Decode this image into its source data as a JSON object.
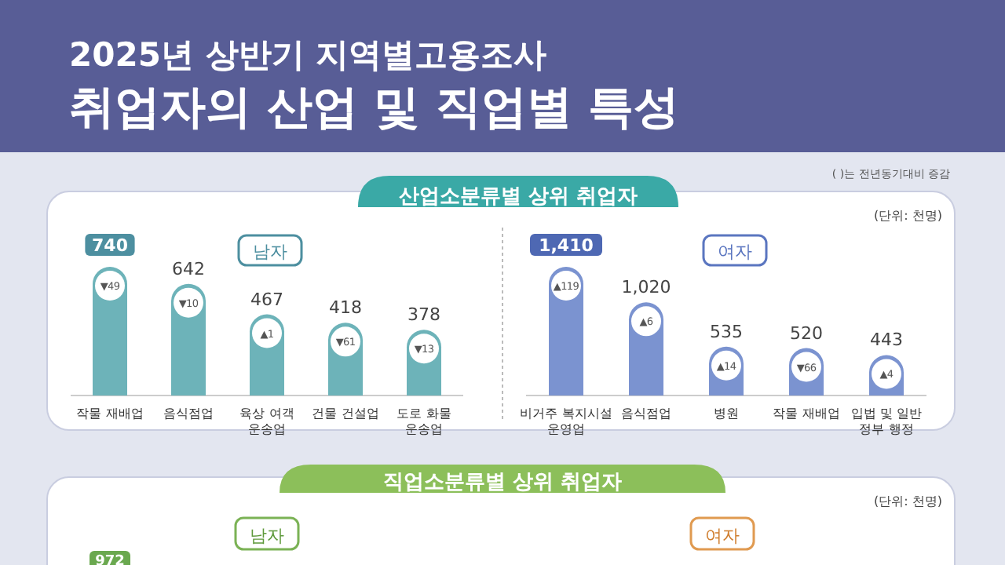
{
  "chart_data": [
    {
      "type": "other",
      "title": "2025년 상반기 지역별고용조사",
      "subtitle": "취업자의 산업 및 직업별 특성"
    },
    {
      "type": "other",
      "title": "산업소분류별 상위 취업자",
      "annotations": [
        "(  )는 전년동기대비 증감",
        "(단위: 천명)"
      ]
    },
    {
      "type": "bar",
      "title": "남자",
      "categories": [
        "작물 재배업",
        "음식점업",
        "육상 여객\n운송업",
        "건물 건설업",
        "도로 화물\n운송업"
      ],
      "values": [
        740,
        642,
        467,
        418,
        378
      ],
      "value_labels": [
        "740",
        "642",
        "467",
        "418",
        "378"
      ],
      "color": "#6db3b9",
      "annotations": [
        {
          "text": "▼49",
          "x": "작물 재배업"
        },
        {
          "text": "▼10",
          "x": "음식점업"
        },
        {
          "text": "▲1",
          "x": "육상 여객\n운송업"
        },
        {
          "text": "▼61",
          "x": "건물 건설업"
        },
        {
          "text": "▼13",
          "x": "도로 화물\n운송업"
        }
      ]
    },
    {
      "type": "bar",
      "title": "여자",
      "categories": [
        "비거주 복지시설\n운영업",
        "음식점업",
        "병원",
        "작물 재배업",
        "입법 및 일반\n정부 행정"
      ],
      "values": [
        1410,
        1020,
        535,
        520,
        443
      ],
      "value_labels": [
        "1,410",
        "1,020",
        "535",
        "520",
        "443"
      ],
      "color": "#7b93d0",
      "annotations": [
        {
          "text": "▲119",
          "x": "비거주 복지시설\n운영업"
        },
        {
          "text": "▲6",
          "x": "음식점업"
        },
        {
          "text": "▲14",
          "x": "병원"
        },
        {
          "text": "▼66",
          "x": "작물 재배업"
        },
        {
          "text": "▲4",
          "x": "입법 및 일반\n정부 행정"
        }
      ]
    },
    {
      "type": "other",
      "title": "직업소분류별 상위 취업자",
      "annotations": [
        "(단위: 천명)",
        "남자",
        "여자",
        "972"
      ]
    }
  ]
}
